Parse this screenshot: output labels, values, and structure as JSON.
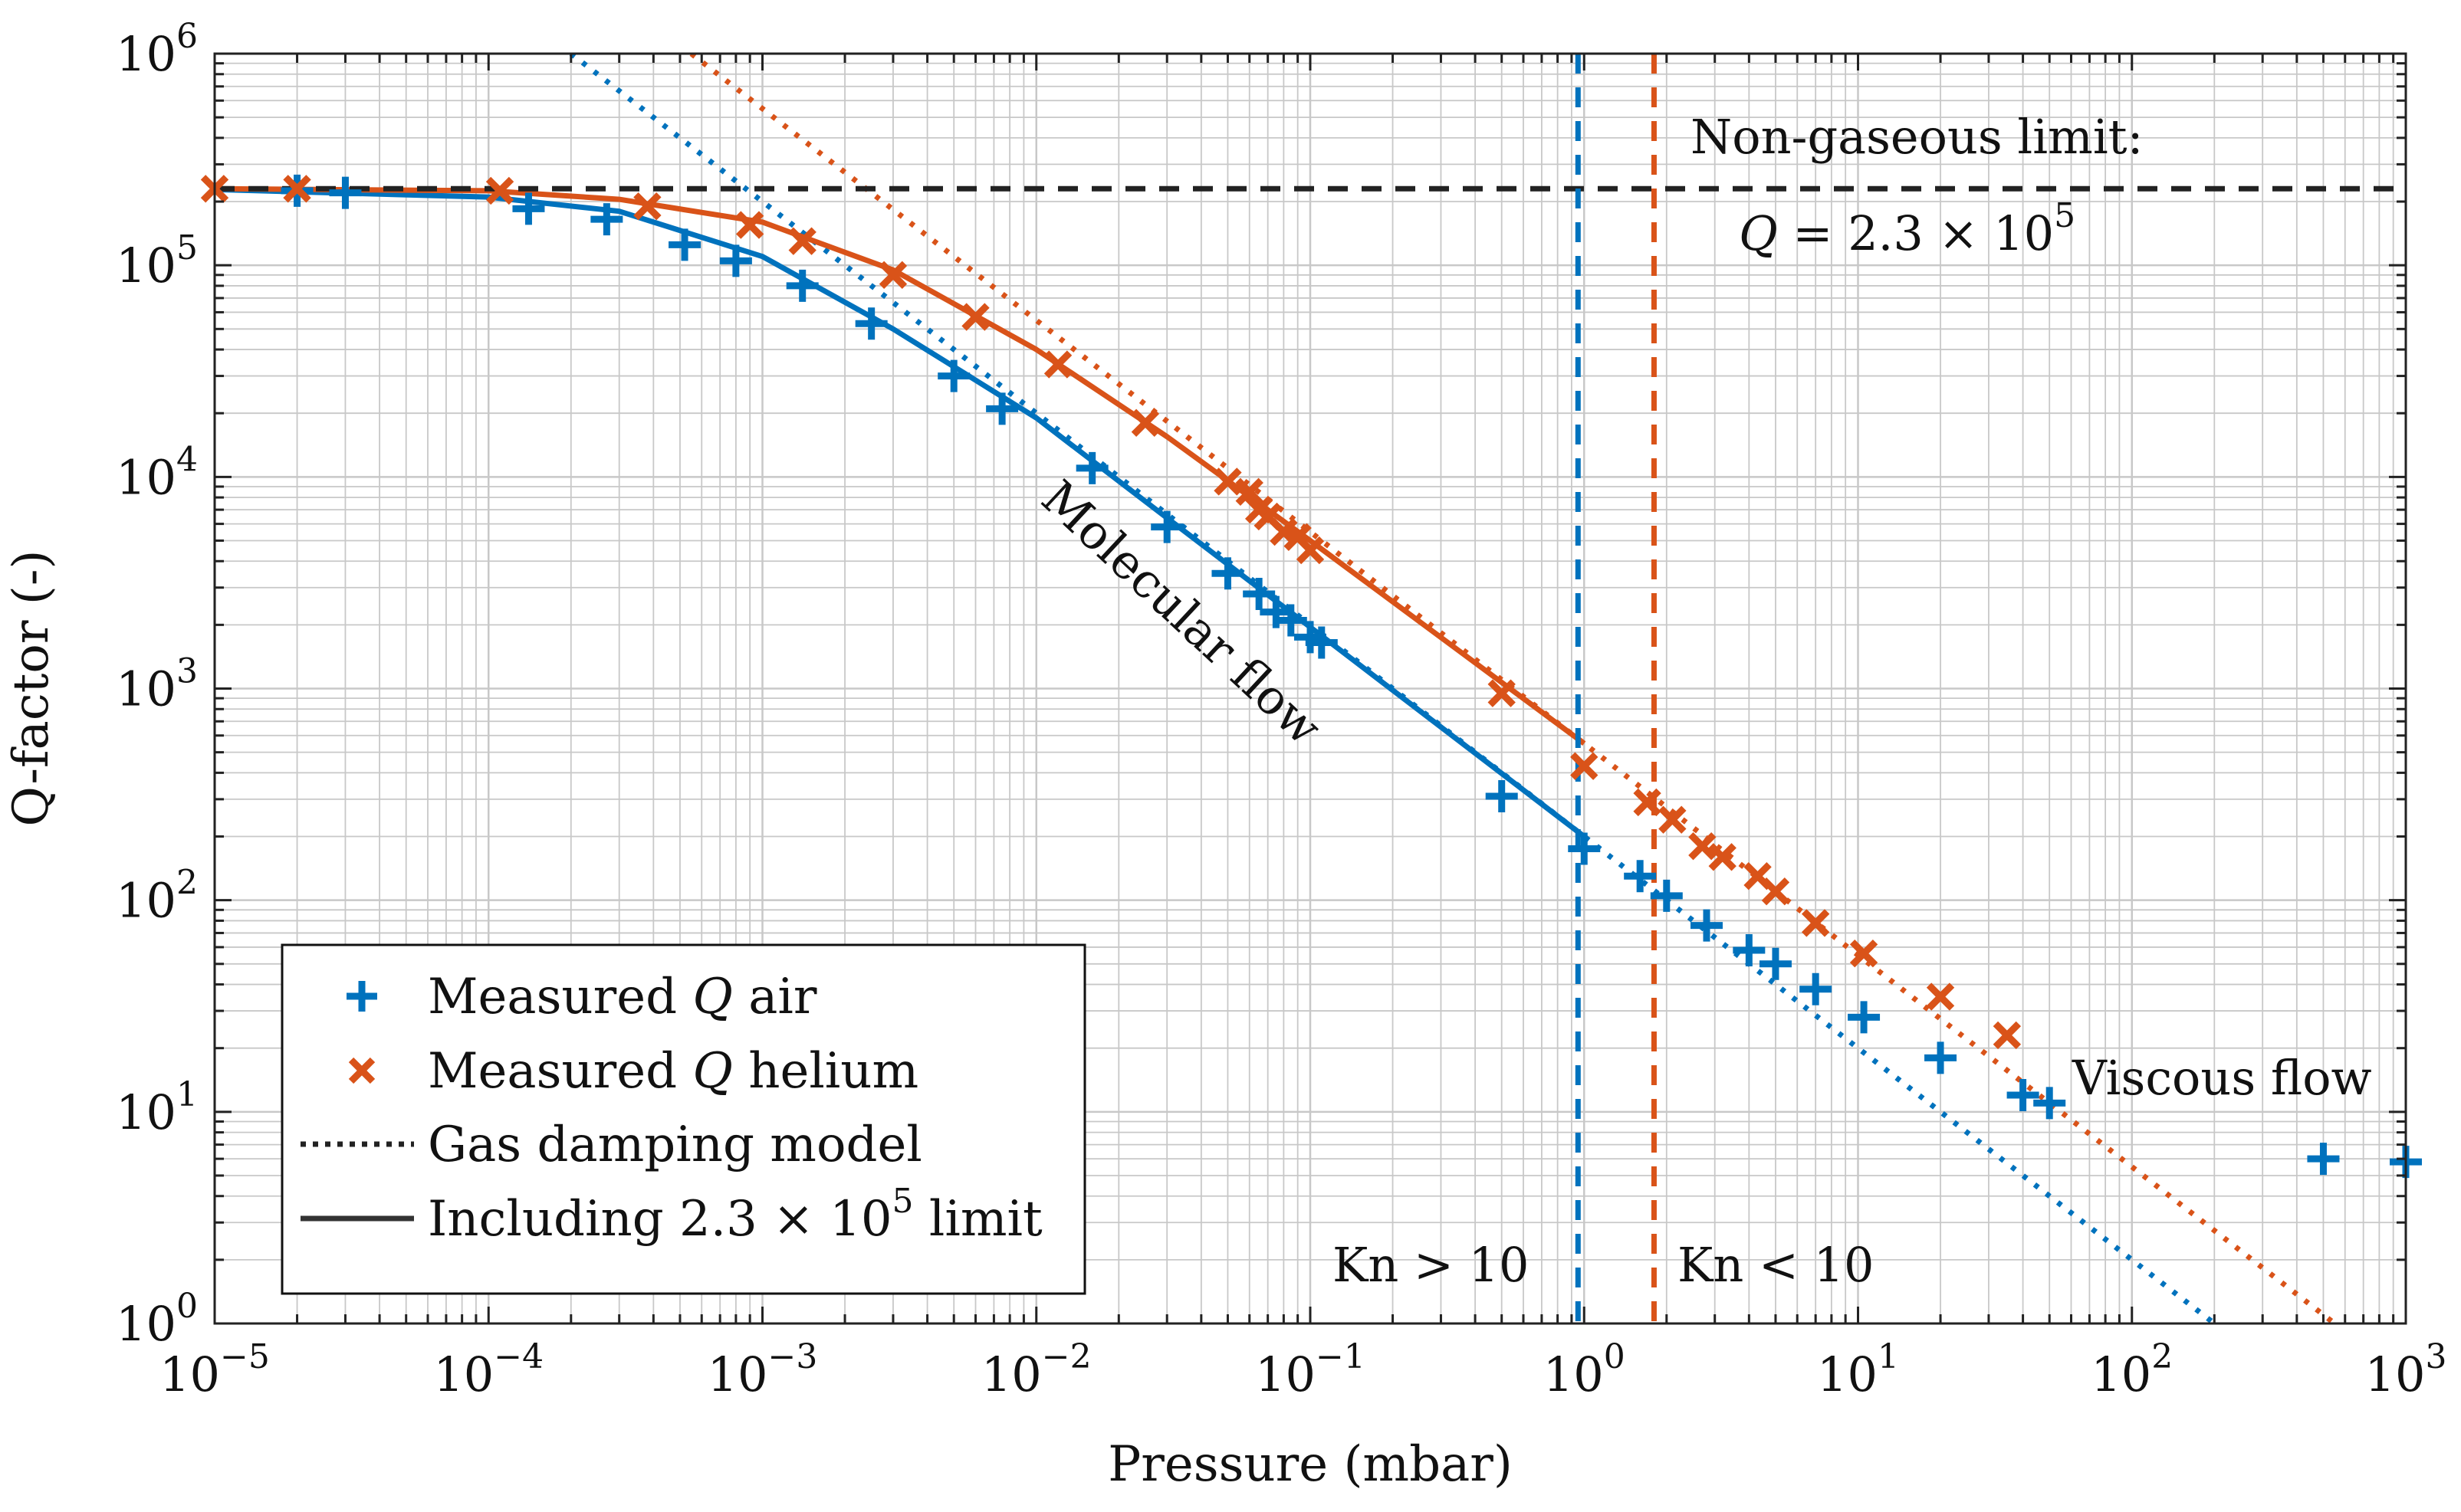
{
  "chart_data": {
    "type": "scatter",
    "title": "",
    "xlabel": "Pressure (mbar)",
    "ylabel": "Q-factor (-)",
    "xscale": "log",
    "yscale": "log",
    "xlim": [
      1e-05,
      1000
    ],
    "ylim": [
      1,
      1000000
    ],
    "grid": true,
    "x_ticks": [
      {
        "value": 1e-05,
        "base": "10",
        "exp": "−5"
      },
      {
        "value": 0.0001,
        "base": "10",
        "exp": "−4"
      },
      {
        "value": 0.001,
        "base": "10",
        "exp": "−3"
      },
      {
        "value": 0.01,
        "base": "10",
        "exp": "−2"
      },
      {
        "value": 0.1,
        "base": "10",
        "exp": "−1"
      },
      {
        "value": 1,
        "base": "10",
        "exp": "0"
      },
      {
        "value": 10,
        "base": "10",
        "exp": "1"
      },
      {
        "value": 100,
        "base": "10",
        "exp": "2"
      },
      {
        "value": 1000,
        "base": "10",
        "exp": "3"
      }
    ],
    "y_ticks": [
      {
        "value": 1,
        "base": "10",
        "exp": "0"
      },
      {
        "value": 10,
        "base": "10",
        "exp": "1"
      },
      {
        "value": 100,
        "base": "10",
        "exp": "2"
      },
      {
        "value": 1000,
        "base": "10",
        "exp": "3"
      },
      {
        "value": 10000,
        "base": "10",
        "exp": "4"
      },
      {
        "value": 100000,
        "base": "10",
        "exp": "5"
      },
      {
        "value": 1000000,
        "base": "10",
        "exp": "6"
      }
    ],
    "series": [
      {
        "name": "Measured Q air",
        "kind": "points",
        "marker": "plus",
        "color": "#0072BD",
        "points": [
          [
            2e-05,
            225000
          ],
          [
            3e-05,
            220000
          ],
          [
            0.00014,
            185000
          ],
          [
            0.00027,
            165000
          ],
          [
            0.00052,
            125000
          ],
          [
            0.0008,
            105000
          ],
          [
            0.0014,
            80000
          ],
          [
            0.0025,
            53000
          ],
          [
            0.005,
            30000
          ],
          [
            0.0075,
            21000
          ],
          [
            0.016,
            11000
          ],
          [
            0.03,
            5800
          ],
          [
            0.05,
            3500
          ],
          [
            0.065,
            2800
          ],
          [
            0.075,
            2300
          ],
          [
            0.085,
            2100
          ],
          [
            0.1,
            1750
          ],
          [
            0.11,
            1650
          ],
          [
            0.5,
            310
          ],
          [
            1,
            175
          ],
          [
            1.6,
            130
          ],
          [
            2,
            105
          ],
          [
            2.8,
            76
          ],
          [
            4,
            58
          ],
          [
            5,
            50
          ],
          [
            7,
            38
          ],
          [
            10.5,
            28
          ],
          [
            20,
            18
          ],
          [
            40,
            12
          ],
          [
            50,
            11
          ],
          [
            500,
            6
          ],
          [
            1000,
            5.8
          ]
        ]
      },
      {
        "name": "Measured Q helium",
        "kind": "points",
        "marker": "cross",
        "color": "#D95319",
        "points": [
          [
            1e-05,
            230000
          ],
          [
            2e-05,
            230000
          ],
          [
            0.00011,
            225000
          ],
          [
            0.00038,
            190000
          ],
          [
            0.0009,
            155000
          ],
          [
            0.0014,
            130000
          ],
          [
            0.003,
            90000
          ],
          [
            0.006,
            57000
          ],
          [
            0.012,
            34000
          ],
          [
            0.025,
            18000
          ],
          [
            0.05,
            9500
          ],
          [
            0.06,
            8500
          ],
          [
            0.065,
            7000
          ],
          [
            0.07,
            6500
          ],
          [
            0.08,
            5500
          ],
          [
            0.09,
            5200
          ],
          [
            0.1,
            4500
          ],
          [
            0.5,
            950
          ],
          [
            1,
            430
          ],
          [
            1.7,
            290
          ],
          [
            2.1,
            240
          ],
          [
            2.7,
            180
          ],
          [
            3.2,
            160
          ],
          [
            4.3,
            130
          ],
          [
            5,
            110
          ],
          [
            7,
            78
          ],
          [
            10.5,
            56
          ],
          [
            20,
            35
          ],
          [
            35,
            23
          ]
        ]
      },
      {
        "name": "Gas damping model (air)",
        "kind": "line",
        "style": "dotted",
        "color": "#0072BD",
        "points": [
          [
            0.0002,
            1000000
          ],
          [
            1,
            200
          ],
          [
            200,
            1
          ]
        ]
      },
      {
        "name": "Gas damping model (helium)",
        "kind": "line",
        "style": "dotted",
        "color": "#D95319",
        "points": [
          [
            0.00055,
            1000000
          ],
          [
            1,
            550
          ],
          [
            550,
            1
          ]
        ]
      },
      {
        "name": "Including 2.3 × 10^5 limit (air)",
        "kind": "line",
        "style": "solid",
        "color": "#0072BD",
        "points": [
          [
            1e-05,
            228000
          ],
          [
            0.0001,
            210000
          ],
          [
            0.0003,
            180000
          ],
          [
            0.001,
            110000
          ],
          [
            0.003,
            50000
          ],
          [
            0.01,
            19000
          ],
          [
            0.03,
            6400
          ],
          [
            0.1,
            1950
          ],
          [
            1,
            200
          ]
        ]
      },
      {
        "name": "Including 2.3 × 10^5 limit (helium)",
        "kind": "line",
        "style": "solid",
        "color": "#D95319",
        "points": [
          [
            1e-05,
            230000
          ],
          [
            0.0001,
            225000
          ],
          [
            0.0003,
            205000
          ],
          [
            0.001,
            160000
          ],
          [
            0.003,
            95000
          ],
          [
            0.01,
            40000
          ],
          [
            0.03,
            15500
          ],
          [
            0.1,
            5000
          ],
          [
            1,
            550
          ]
        ]
      },
      {
        "name": "Non-gaseous limit",
        "kind": "hline",
        "style": "dashed",
        "color": "#222222",
        "y": 230000
      },
      {
        "name": "Kn = 10 (air)",
        "kind": "vline",
        "style": "dashed",
        "color": "#0072BD",
        "x": 0.95
      },
      {
        "name": "Kn = 10 (helium)",
        "kind": "vline",
        "style": "dashed",
        "color": "#D95319",
        "x": 1.8
      }
    ],
    "annotations": {
      "nongas_title": "Non-gaseous limit:",
      "nongas_eq_q": "Q",
      "nongas_eq_rest": " = 2.3 × 10",
      "nongas_eq_exp": "5",
      "molecular": "Molecular flow",
      "viscous": "Viscous flow",
      "kn_gt": "Kn > 10",
      "kn_lt": "Kn < 10"
    },
    "legend": {
      "position": "bottom-left",
      "items": [
        {
          "marker": "plus",
          "color": "#0072BD",
          "pre": "Measured ",
          "q": "Q",
          "post": " air",
          "exp": ""
        },
        {
          "marker": "cross",
          "color": "#D95319",
          "pre": "Measured ",
          "q": "Q",
          "post": " helium",
          "exp": ""
        },
        {
          "marker": "dotted",
          "color": "#222222",
          "pre": "Gas damping model",
          "q": "",
          "post": "",
          "exp": ""
        },
        {
          "marker": "solid",
          "color": "#333333",
          "pre": "Including 2.3 × 10",
          "q": "",
          "post": " limit",
          "exp": "5"
        }
      ]
    }
  }
}
